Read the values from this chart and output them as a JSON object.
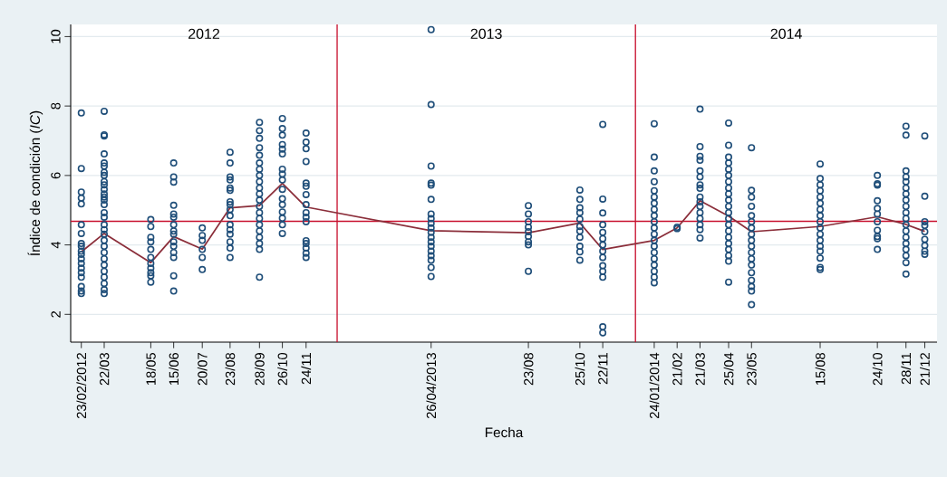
{
  "chart_data": {
    "type": "scatter",
    "xlabel": "Fecha",
    "ylabel": "Índice de condición (*IC*)",
    "xlim": [
      "2012-02-10",
      "2015-01-05"
    ],
    "ylim": [
      1.2,
      10.35
    ],
    "yticks": [
      2,
      4,
      6,
      8,
      10
    ],
    "xticks": [
      {
        "value": "2012-02-23",
        "label": "23/02/2012"
      },
      {
        "value": "2012-03-22",
        "label": "22/03"
      },
      {
        "value": "2012-05-18",
        "label": "18/05"
      },
      {
        "value": "2012-06-15",
        "label": "15/06"
      },
      {
        "value": "2012-07-20",
        "label": "20/07"
      },
      {
        "value": "2012-08-23",
        "label": "23/08"
      },
      {
        "value": "2012-09-28",
        "label": "28/09"
      },
      {
        "value": "2012-10-26",
        "label": "26/10"
      },
      {
        "value": "2012-11-24",
        "label": "24/11"
      },
      {
        "value": "2013-04-26",
        "label": "26/04/2013"
      },
      {
        "value": "2013-08-23",
        "label": "23/08"
      },
      {
        "value": "2013-10-25",
        "label": "25/10"
      },
      {
        "value": "2013-11-22",
        "label": "22/11"
      },
      {
        "value": "2014-01-24",
        "label": "24/01/2014"
      },
      {
        "value": "2014-02-21",
        "label": "21/02"
      },
      {
        "value": "2014-03-21",
        "label": "21/03"
      },
      {
        "value": "2014-04-25",
        "label": "25/04"
      },
      {
        "value": "2014-05-23",
        "label": "23/05"
      },
      {
        "value": "2014-08-15",
        "label": "15/08"
      },
      {
        "value": "2014-10-24",
        "label": "24/10"
      },
      {
        "value": "2014-11-28",
        "label": "28/11"
      },
      {
        "value": "2014-12-21",
        "label": "21/12"
      }
    ],
    "grid": "y",
    "annotations": [
      "2012",
      "2013",
      "2014"
    ],
    "ref_lines": [
      {
        "axis": "x",
        "value": "2013-01-01",
        "color": "#c8102e"
      },
      {
        "axis": "x",
        "value": "2014-01-01",
        "color": "#c8102e"
      },
      {
        "axis": "y",
        "value": 4.68,
        "color": "#c8102e"
      }
    ],
    "series": [
      {
        "marker": "circle",
        "color": "#1f4e79",
        "x": [
          "2012-02-23",
          "2012-02-23",
          "2012-02-23",
          "2012-02-23",
          "2012-02-23",
          "2012-02-23",
          "2012-02-23",
          "2012-02-23",
          "2012-02-23",
          "2012-02-23",
          "2012-02-23",
          "2012-02-23",
          "2012-02-23",
          "2012-02-23",
          "2012-02-23",
          "2012-02-23",
          "2012-02-23",
          "2012-02-23",
          "2012-02-23"
        ],
        "values": [
          7.8,
          6.2,
          5.52,
          5.35,
          5.18,
          4.58,
          4.33,
          4.04,
          3.96,
          3.82,
          3.73,
          3.6,
          3.47,
          3.33,
          3.2,
          3.07,
          2.8,
          2.67,
          2.6
        ]
      },
      {
        "marker": "circle",
        "color": "#1f4e79",
        "x": [
          "2012-03-22",
          "2012-03-22",
          "2012-03-22",
          "2012-03-22",
          "2012-03-22",
          "2012-03-22",
          "2012-03-22",
          "2012-03-22",
          "2012-03-22",
          "2012-03-22",
          "2012-03-22",
          "2012-03-22",
          "2012-03-22",
          "2012-03-22",
          "2012-03-22",
          "2012-03-22",
          "2012-03-22",
          "2012-03-22",
          "2012-03-22",
          "2012-03-22",
          "2012-03-22",
          "2012-03-22",
          "2012-03-22",
          "2012-03-22",
          "2012-03-22",
          "2012-03-22",
          "2012-03-22",
          "2012-03-22",
          "2012-03-22",
          "2012-03-22"
        ],
        "values": [
          7.85,
          7.17,
          7.14,
          6.62,
          6.36,
          6.27,
          6.09,
          6.0,
          5.82,
          5.73,
          5.6,
          5.47,
          5.38,
          5.29,
          5.16,
          4.93,
          4.8,
          4.58,
          4.44,
          4.31,
          4.13,
          3.96,
          3.78,
          3.6,
          3.42,
          3.24,
          3.07,
          2.89,
          2.71,
          2.6
        ]
      },
      {
        "marker": "circle",
        "color": "#1f4e79",
        "x": [
          "2012-05-18",
          "2012-05-18",
          "2012-05-18",
          "2012-05-18",
          "2012-05-18",
          "2012-05-18",
          "2012-05-18",
          "2012-05-18",
          "2012-05-18",
          "2012-05-18",
          "2012-05-18"
        ],
        "values": [
          4.73,
          4.53,
          4.22,
          4.09,
          3.87,
          3.64,
          3.47,
          3.33,
          3.2,
          3.11,
          2.93
        ]
      },
      {
        "marker": "circle",
        "color": "#1f4e79",
        "x": [
          "2012-06-15",
          "2012-06-15",
          "2012-06-15",
          "2012-06-15",
          "2012-06-15",
          "2012-06-15",
          "2012-06-15",
          "2012-06-15",
          "2012-06-15",
          "2012-06-15",
          "2012-06-15",
          "2012-06-15",
          "2012-06-15",
          "2012-06-15",
          "2012-06-15"
        ],
        "values": [
          6.36,
          5.96,
          5.81,
          5.14,
          4.89,
          4.8,
          4.58,
          4.4,
          4.31,
          4.09,
          3.96,
          3.78,
          3.64,
          3.11,
          2.67
        ]
      },
      {
        "marker": "circle",
        "color": "#1f4e79",
        "x": [
          "2012-07-20",
          "2012-07-20",
          "2012-07-20",
          "2012-07-20",
          "2012-07-20",
          "2012-07-20"
        ],
        "values": [
          4.49,
          4.27,
          4.13,
          3.87,
          3.64,
          3.29
        ]
      },
      {
        "marker": "circle",
        "color": "#1f4e79",
        "x": [
          "2012-08-23",
          "2012-08-23",
          "2012-08-23",
          "2012-08-23",
          "2012-08-23",
          "2012-08-23",
          "2012-08-23",
          "2012-08-23",
          "2012-08-23",
          "2012-08-23",
          "2012-08-23",
          "2012-08-23",
          "2012-08-23",
          "2012-08-23",
          "2012-08-23",
          "2012-08-23"
        ],
        "values": [
          6.67,
          6.36,
          5.96,
          5.87,
          5.64,
          5.57,
          5.24,
          5.16,
          5.02,
          4.84,
          4.58,
          4.44,
          4.31,
          4.09,
          3.91,
          3.64
        ]
      },
      {
        "marker": "circle",
        "color": "#1f4e79",
        "x": [
          "2012-09-28",
          "2012-09-28",
          "2012-09-28",
          "2012-09-28",
          "2012-09-28",
          "2012-09-28",
          "2012-09-28",
          "2012-09-28",
          "2012-09-28",
          "2012-09-28",
          "2012-09-28",
          "2012-09-28",
          "2012-09-28",
          "2012-09-28",
          "2012-09-28",
          "2012-09-28",
          "2012-09-28",
          "2012-09-28",
          "2012-09-28",
          "2012-09-28",
          "2012-09-28"
        ],
        "values": [
          7.53,
          7.29,
          7.07,
          6.8,
          6.58,
          6.36,
          6.18,
          6.0,
          5.82,
          5.64,
          5.47,
          5.29,
          5.11,
          4.93,
          4.76,
          4.58,
          4.4,
          4.22,
          4.04,
          3.87,
          3.07
        ]
      },
      {
        "marker": "circle",
        "color": "#1f4e79",
        "x": [
          "2012-10-26",
          "2012-10-26",
          "2012-10-26",
          "2012-10-26",
          "2012-10-26",
          "2012-10-26",
          "2012-10-26",
          "2012-10-26",
          "2012-10-26",
          "2012-10-26",
          "2012-10-26",
          "2012-10-26",
          "2012-10-26",
          "2012-10-26",
          "2012-10-26",
          "2012-10-26"
        ],
        "values": [
          7.64,
          7.35,
          7.16,
          6.89,
          6.76,
          6.62,
          6.18,
          6.04,
          5.87,
          5.6,
          5.33,
          5.16,
          4.95,
          4.77,
          4.58,
          4.33
        ]
      },
      {
        "marker": "circle",
        "color": "#1f4e79",
        "x": [
          "2012-11-24",
          "2012-11-24",
          "2012-11-24",
          "2012-11-24",
          "2012-11-24",
          "2012-11-24",
          "2012-11-24",
          "2012-11-24",
          "2012-11-24",
          "2012-11-24",
          "2012-11-24",
          "2012-11-24",
          "2012-11-24",
          "2012-11-24",
          "2012-11-24",
          "2012-11-24"
        ],
        "values": [
          7.22,
          6.96,
          6.77,
          6.4,
          5.78,
          5.69,
          5.45,
          5.16,
          4.93,
          4.8,
          4.67,
          4.12,
          4.04,
          3.91,
          3.76,
          3.64
        ]
      },
      {
        "marker": "circle",
        "color": "#1f4e79",
        "x": [
          "2013-04-26",
          "2013-04-26",
          "2013-04-26",
          "2013-04-26",
          "2013-04-26",
          "2013-04-26",
          "2013-04-26",
          "2013-04-26",
          "2013-04-26",
          "2013-04-26",
          "2013-04-26",
          "2013-04-26",
          "2013-04-26",
          "2013-04-26",
          "2013-04-26",
          "2013-04-26",
          "2013-04-26",
          "2013-04-26",
          "2013-04-26"
        ],
        "values": [
          10.2,
          8.04,
          6.27,
          5.78,
          5.72,
          5.31,
          4.89,
          4.76,
          4.62,
          4.49,
          4.36,
          4.22,
          4.09,
          3.96,
          3.82,
          3.69,
          3.56,
          3.35,
          3.09
        ]
      },
      {
        "marker": "circle",
        "color": "#1f4e79",
        "x": [
          "2013-08-23",
          "2013-08-23",
          "2013-08-23",
          "2013-08-23",
          "2013-08-23",
          "2013-08-23",
          "2013-08-23",
          "2013-08-23",
          "2013-08-23"
        ],
        "values": [
          5.13,
          4.89,
          4.67,
          4.51,
          4.38,
          4.24,
          4.09,
          4.0,
          3.24
        ]
      },
      {
        "marker": "circle",
        "color": "#1f4e79",
        "x": [
          "2013-10-25",
          "2013-10-25",
          "2013-10-25",
          "2013-10-25",
          "2013-10-25",
          "2013-10-25",
          "2013-10-25",
          "2013-10-25",
          "2013-10-25",
          "2013-10-25",
          "2013-10-25"
        ],
        "values": [
          5.58,
          5.31,
          5.07,
          4.93,
          4.74,
          4.53,
          4.4,
          4.22,
          3.96,
          3.8,
          3.56
        ]
      },
      {
        "marker": "circle",
        "color": "#1f4e79",
        "x": [
          "2013-11-22",
          "2013-11-22",
          "2013-11-22",
          "2013-11-22",
          "2013-11-22",
          "2013-11-22",
          "2013-11-22",
          "2013-11-22",
          "2013-11-22",
          "2013-11-22",
          "2013-11-22",
          "2013-11-22",
          "2013-11-22",
          "2013-11-22"
        ],
        "values": [
          7.47,
          5.32,
          4.92,
          4.58,
          4.36,
          4.18,
          4.0,
          3.82,
          3.64,
          3.4,
          3.24,
          3.07,
          1.64,
          1.47
        ]
      },
      {
        "marker": "circle",
        "color": "#1f4e79",
        "x": [
          "2014-01-24",
          "2014-01-24",
          "2014-01-24",
          "2014-01-24",
          "2014-01-24",
          "2014-01-24",
          "2014-01-24",
          "2014-01-24",
          "2014-01-24",
          "2014-01-24",
          "2014-01-24",
          "2014-01-24",
          "2014-01-24",
          "2014-01-24",
          "2014-01-24",
          "2014-01-24",
          "2014-01-24",
          "2014-01-24",
          "2014-01-24",
          "2014-01-24"
        ],
        "values": [
          7.49,
          6.53,
          6.13,
          5.82,
          5.56,
          5.38,
          5.2,
          5.02,
          4.84,
          4.67,
          4.49,
          4.31,
          4.13,
          3.96,
          3.78,
          3.6,
          3.42,
          3.24,
          3.07,
          2.91
        ]
      },
      {
        "marker": "circle",
        "color": "#1f4e79",
        "x": [
          "2014-02-21",
          "2014-02-21"
        ],
        "values": [
          4.51,
          4.47
        ]
      },
      {
        "marker": "circle",
        "color": "#1f4e79",
        "x": [
          "2014-03-21",
          "2014-03-21",
          "2014-03-21",
          "2014-03-21",
          "2014-03-21",
          "2014-03-21",
          "2014-03-21",
          "2014-03-21",
          "2014-03-21",
          "2014-03-21",
          "2014-03-21",
          "2014-03-21",
          "2014-03-21",
          "2014-03-21",
          "2014-03-21",
          "2014-03-21"
        ],
        "values": [
          7.91,
          6.83,
          6.55,
          6.44,
          6.13,
          5.96,
          5.73,
          5.63,
          5.38,
          5.24,
          5.11,
          4.93,
          4.76,
          4.58,
          4.44,
          4.2
        ]
      },
      {
        "marker": "circle",
        "color": "#1f4e79",
        "x": [
          "2014-04-25",
          "2014-04-25",
          "2014-04-25",
          "2014-04-25",
          "2014-04-25",
          "2014-04-25",
          "2014-04-25",
          "2014-04-25",
          "2014-04-25",
          "2014-04-25",
          "2014-04-25",
          "2014-04-25",
          "2014-04-25",
          "2014-04-25",
          "2014-04-25",
          "2014-04-25",
          "2014-04-25",
          "2014-04-25",
          "2014-04-25",
          "2014-04-25",
          "2014-04-25"
        ],
        "values": [
          7.51,
          6.87,
          6.53,
          6.36,
          6.18,
          6.0,
          5.82,
          5.64,
          5.47,
          5.29,
          5.11,
          4.93,
          4.76,
          4.58,
          4.4,
          4.22,
          4.04,
          3.87,
          3.69,
          3.53,
          2.93
        ]
      },
      {
        "marker": "circle",
        "color": "#1f4e79",
        "x": [
          "2014-05-23",
          "2014-05-23",
          "2014-05-23",
          "2014-05-23",
          "2014-05-23",
          "2014-05-23",
          "2014-05-23",
          "2014-05-23",
          "2014-05-23",
          "2014-05-23",
          "2014-05-23",
          "2014-05-23",
          "2014-05-23",
          "2014-05-23",
          "2014-05-23",
          "2014-05-23",
          "2014-05-23",
          "2014-05-23"
        ],
        "values": [
          6.8,
          5.57,
          5.38,
          5.11,
          4.84,
          4.67,
          4.49,
          4.31,
          4.13,
          3.96,
          3.78,
          3.6,
          3.42,
          3.2,
          2.98,
          2.8,
          2.67,
          2.28
        ]
      },
      {
        "marker": "circle",
        "color": "#1f4e79",
        "x": [
          "2014-08-15",
          "2014-08-15",
          "2014-08-15",
          "2014-08-15",
          "2014-08-15",
          "2014-08-15",
          "2014-08-15",
          "2014-08-15",
          "2014-08-15",
          "2014-08-15",
          "2014-08-15",
          "2014-08-15",
          "2014-08-15",
          "2014-08-15",
          "2014-08-15",
          "2014-08-15",
          "2014-08-15"
        ],
        "values": [
          6.33,
          5.91,
          5.73,
          5.56,
          5.38,
          5.2,
          5.02,
          4.84,
          4.67,
          4.49,
          4.31,
          4.13,
          3.96,
          3.82,
          3.62,
          3.35,
          3.29
        ]
      },
      {
        "marker": "circle",
        "color": "#1f4e79",
        "x": [
          "2014-10-24",
          "2014-10-24",
          "2014-10-24",
          "2014-10-24",
          "2014-10-24",
          "2014-10-24",
          "2014-10-24",
          "2014-10-24",
          "2014-10-24",
          "2014-10-24",
          "2014-10-24"
        ],
        "values": [
          6.0,
          5.76,
          5.72,
          5.27,
          5.05,
          4.89,
          4.67,
          4.42,
          4.24,
          4.18,
          3.87
        ]
      },
      {
        "marker": "circle",
        "color": "#1f4e79",
        "x": [
          "2014-11-28",
          "2014-11-28",
          "2014-11-28",
          "2014-11-28",
          "2014-11-28",
          "2014-11-28",
          "2014-11-28",
          "2014-11-28",
          "2014-11-28",
          "2014-11-28",
          "2014-11-28",
          "2014-11-28",
          "2014-11-28",
          "2014-11-28",
          "2014-11-28",
          "2014-11-28",
          "2014-11-28",
          "2014-11-28",
          "2014-11-28"
        ],
        "values": [
          7.42,
          7.16,
          6.13,
          5.96,
          5.82,
          5.64,
          5.47,
          5.29,
          5.11,
          4.93,
          4.76,
          4.58,
          4.4,
          4.22,
          4.04,
          3.87,
          3.69,
          3.49,
          3.16
        ]
      },
      {
        "marker": "circle",
        "color": "#1f4e79",
        "x": [
          "2014-12-21",
          "2014-12-21",
          "2014-12-21",
          "2014-12-21",
          "2014-12-21",
          "2014-12-21",
          "2014-12-21",
          "2014-12-21",
          "2014-12-21"
        ],
        "values": [
          7.14,
          5.4,
          4.67,
          4.56,
          4.38,
          4.16,
          3.98,
          3.82,
          3.73
        ]
      },
      {
        "type": "line",
        "marker": "none",
        "line_style": "solid",
        "color": "#8b2e3a",
        "x": [
          "2012-02-23",
          "2012-03-22",
          "2012-05-18",
          "2012-06-15",
          "2012-07-20",
          "2012-08-23",
          "2012-09-28",
          "2012-10-26",
          "2012-11-24",
          "2013-04-26",
          "2013-08-23",
          "2013-10-25",
          "2013-11-22",
          "2014-01-24",
          "2014-02-21",
          "2014-03-21",
          "2014-04-25",
          "2014-05-23",
          "2014-08-15",
          "2014-10-24",
          "2014-11-28",
          "2014-12-21"
        ],
        "values": [
          3.8,
          4.33,
          3.49,
          4.24,
          3.88,
          5.07,
          5.13,
          5.77,
          5.09,
          4.41,
          4.35,
          4.63,
          3.87,
          4.13,
          4.49,
          5.27,
          4.83,
          4.38,
          4.53,
          4.81,
          4.59,
          4.39
        ]
      }
    ]
  }
}
